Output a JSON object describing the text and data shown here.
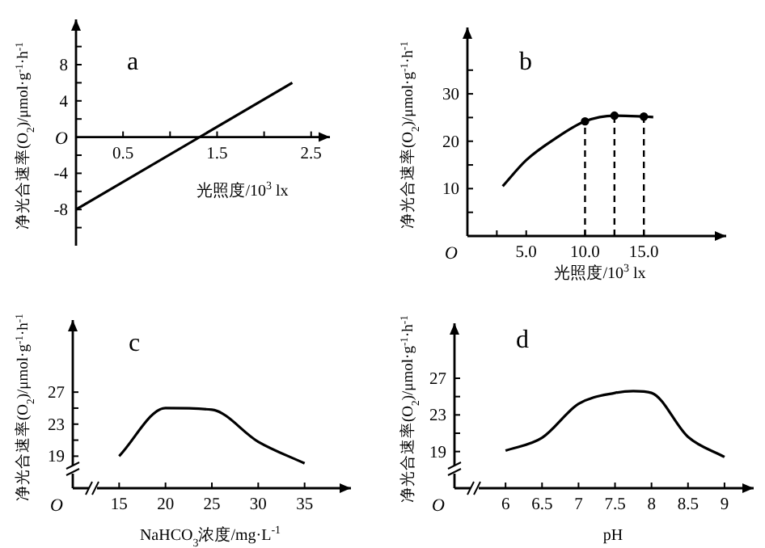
{
  "chart_data": [
    {
      "type": "line",
      "title": "a",
      "xlabel": "光照度/10$^{3}$ lx",
      "ylabel": "净光合速率(O$_{2}$)/μmol·g$^{-1}$·h$^{-1}$",
      "annotations": [
        "O"
      ],
      "xlim": [
        0,
        2.7
      ],
      "ylim": [
        -12,
        13
      ],
      "xticks": [
        0.5,
        {
          "value": 1,
          "label": null
        },
        1.5,
        {
          "value": 2,
          "label": null
        },
        2.5
      ],
      "yticks": [
        {
          "value": -10,
          "label": null
        },
        -8,
        {
          "value": -6,
          "label": null
        },
        -4,
        {
          "value": -2,
          "label": null
        },
        {
          "value": 2,
          "label": null
        },
        4,
        {
          "value": 6,
          "label": null
        },
        8,
        {
          "value": 10,
          "label": null
        }
      ],
      "series": [
        {
          "color": "#000000",
          "x": [
            0,
            2.3
          ],
          "values": [
            -8,
            6
          ]
        }
      ]
    },
    {
      "type": "line",
      "title": "b",
      "xlabel": "光照度/10$^{3}$ lx",
      "ylabel": "净光合速率(O$_{2}$)/μmol·g$^{-1}$·h$^{-1}$",
      "annotations": [
        "O"
      ],
      "xlim": [
        0,
        22
      ],
      "ylim": [
        0,
        44
      ],
      "xticks": [
        {
          "value": 2.5,
          "label": null
        },
        {
          "value": 5,
          "label": "5.0"
        },
        {
          "value": 10,
          "label": "10.0"
        },
        {
          "value": 15,
          "label": "15.0"
        }
      ],
      "yticks": [
        {
          "value": 5,
          "label": null
        },
        10,
        {
          "value": 15,
          "label": null
        },
        20,
        {
          "value": 25,
          "label": null
        },
        30,
        {
          "value": 35,
          "label": null
        }
      ],
      "series": [
        {
          "color": "#000000",
          "x": [
            3,
            5,
            7.5,
            10,
            12.5,
            15,
            15.8
          ],
          "values": [
            10.5,
            16,
            20.6,
            24.2,
            25.4,
            25.2,
            25.1
          ]
        },
        {
          "type": "lollipop",
          "color": "#000000",
          "marker": "circle",
          "line_style": "dashed",
          "x": [
            10,
            12.5,
            15
          ],
          "values": [
            24.2,
            25.4,
            25.2
          ]
        }
      ]
    },
    {
      "type": "line",
      "title": "c",
      "xlabel": "NaHCO$_{3}$浓度/mg·L$^{-1}$",
      "ylabel": "净光合速率(O$_{2}$)/μmol·g$^{-1}$·h$^{-1}$",
      "annotations": [
        "O"
      ],
      "xlim": [
        10,
        40
      ],
      "ylim": [
        15,
        36
      ],
      "xticks": [
        15,
        20,
        25,
        30,
        35
      ],
      "yticks": [
        19,
        {
          "value": 21,
          "label": null
        },
        23,
        {
          "value": 25,
          "label": null
        },
        27
      ],
      "series": [
        {
          "color": "#000000",
          "x": [
            15,
            20,
            25,
            30,
            35
          ],
          "values": [
            19,
            25,
            24.8,
            20.8,
            18.1
          ]
        }
      ]
    },
    {
      "type": "line",
      "title": "d",
      "xlabel": "pH",
      "ylabel": "净光合速率(O$_{2}$)/μmol·g$^{-1}$·h$^{-1}$",
      "annotations": [
        "O"
      ],
      "xlim": [
        5.3,
        9.4
      ],
      "ylim": [
        15,
        33
      ],
      "xticks": [
        6,
        6.5,
        7,
        7.5,
        8,
        8.5,
        9
      ],
      "yticks": [
        19,
        {
          "value": 21,
          "label": null
        },
        23,
        {
          "value": 25,
          "label": null
        },
        27
      ],
      "series": [
        {
          "color": "#000000",
          "x": [
            6,
            6.5,
            7,
            7.5,
            7.75,
            8,
            8.5,
            9
          ],
          "values": [
            19.1,
            20.5,
            24.2,
            25.4,
            25.6,
            25.4,
            20.6,
            18.4
          ]
        }
      ]
    }
  ]
}
